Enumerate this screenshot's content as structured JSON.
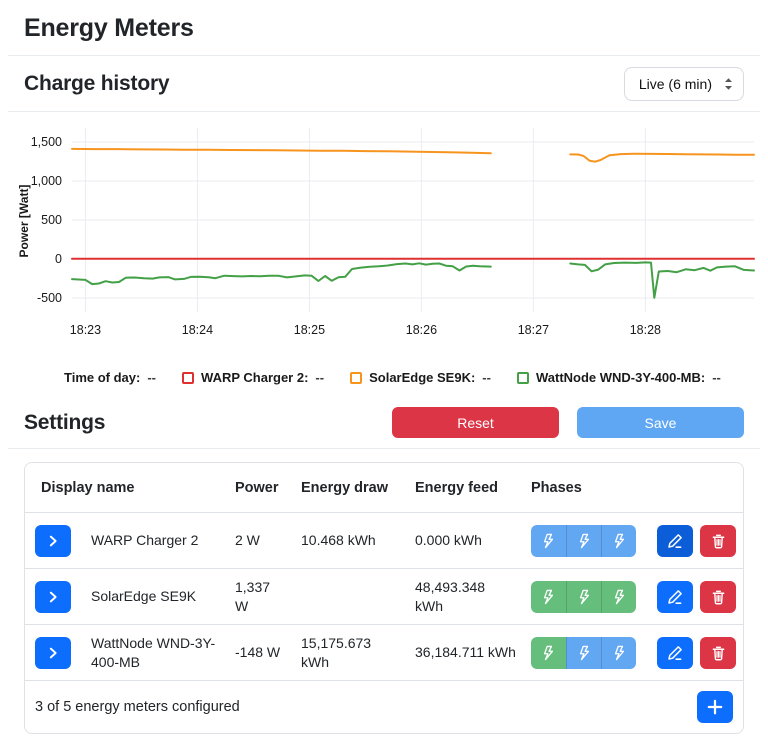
{
  "header": {
    "title": "Energy Meters"
  },
  "chart_section": {
    "title": "Charge history",
    "range_value": "Live (6 min)"
  },
  "chart_data": {
    "type": "line",
    "title": "Charge history",
    "ylabel": "Power [Watt]",
    "xlabel": "Time of day",
    "grid": true,
    "legend_position": "bottom",
    "x_domain": [
      -0.12,
      5.97
    ],
    "y_domain": [
      -680,
      1680
    ],
    "x_ticks": [
      {
        "t": 0,
        "label": "18:23"
      },
      {
        "t": 1,
        "label": "18:24"
      },
      {
        "t": 2,
        "label": "18:25"
      },
      {
        "t": 3,
        "label": "18:26"
      },
      {
        "t": 4,
        "label": "18:27"
      },
      {
        "t": 5,
        "label": "18:28"
      }
    ],
    "y_ticks": [
      {
        "v": 1500,
        "label": "1,500"
      },
      {
        "v": 1000,
        "label": "1,000"
      },
      {
        "v": 500,
        "label": "500"
      },
      {
        "v": 0,
        "label": "0"
      },
      {
        "v": -500,
        "label": "-500"
      }
    ],
    "series": [
      {
        "name": "WARP Charger 2",
        "color": "#e03131",
        "unit": "Watt",
        "segments": [
          [
            [
              -0.12,
              2
            ],
            [
              5.97,
              2
            ]
          ]
        ]
      },
      {
        "name": "SolarEdge SE9K",
        "color": "#f7941e",
        "unit": "Watt",
        "segments": [
          [
            [
              -0.12,
              1412
            ],
            [
              0.1,
              1409
            ],
            [
              0.3,
              1410
            ],
            [
              0.5,
              1406
            ],
            [
              0.7,
              1404
            ],
            [
              0.9,
              1402
            ],
            [
              1.1,
              1400
            ],
            [
              1.3,
              1398
            ],
            [
              1.5,
              1396
            ],
            [
              1.7,
              1394
            ],
            [
              1.9,
              1392
            ],
            [
              2.1,
              1389
            ],
            [
              2.3,
              1387
            ],
            [
              2.5,
              1384
            ],
            [
              2.7,
              1381
            ],
            [
              2.9,
              1377
            ],
            [
              3.1,
              1372
            ],
            [
              3.3,
              1367
            ],
            [
              3.45,
              1362
            ],
            [
              3.62,
              1357
            ]
          ],
          [
            [
              4.33,
              1342
            ],
            [
              4.4,
              1340
            ],
            [
              4.45,
              1320
            ],
            [
              4.5,
              1262
            ],
            [
              4.55,
              1248
            ],
            [
              4.6,
              1270
            ],
            [
              4.68,
              1330
            ],
            [
              4.78,
              1345
            ],
            [
              4.9,
              1349
            ],
            [
              5.05,
              1348
            ],
            [
              5.2,
              1346
            ],
            [
              5.35,
              1344
            ],
            [
              5.5,
              1342
            ],
            [
              5.65,
              1340
            ],
            [
              5.8,
              1338
            ],
            [
              5.97,
              1337
            ]
          ]
        ]
      },
      {
        "name": "WattNode WND-3Y-400-MB",
        "color": "#43a047",
        "unit": "Watt",
        "segments": [
          [
            [
              -0.12,
              -258
            ],
            [
              0,
              -268
            ],
            [
              0.06,
              -322
            ],
            [
              0.12,
              -315
            ],
            [
              0.18,
              -285
            ],
            [
              0.24,
              -302
            ],
            [
              0.3,
              -295
            ],
            [
              0.36,
              -240
            ],
            [
              0.44,
              -238
            ],
            [
              0.52,
              -248
            ],
            [
              0.6,
              -252
            ],
            [
              0.66,
              -236
            ],
            [
              0.74,
              -232
            ],
            [
              0.8,
              -262
            ],
            [
              0.88,
              -256
            ],
            [
              0.94,
              -230
            ],
            [
              1.02,
              -228
            ],
            [
              1.1,
              -234
            ],
            [
              1.16,
              -246
            ],
            [
              1.24,
              -214
            ],
            [
              1.32,
              -220
            ],
            [
              1.4,
              -224
            ],
            [
              1.48,
              -218
            ],
            [
              1.56,
              -222
            ],
            [
              1.64,
              -216
            ],
            [
              1.72,
              -214
            ],
            [
              1.8,
              -236
            ],
            [
              1.88,
              -224
            ],
            [
              1.96,
              -210
            ],
            [
              2.02,
              -216
            ],
            [
              2.08,
              -282
            ],
            [
              2.14,
              -218
            ],
            [
              2.2,
              -280
            ],
            [
              2.26,
              -234
            ],
            [
              2.32,
              -228
            ],
            [
              2.38,
              -128
            ],
            [
              2.46,
              -110
            ],
            [
              2.54,
              -100
            ],
            [
              2.62,
              -94
            ],
            [
              2.7,
              -84
            ],
            [
              2.78,
              -66
            ],
            [
              2.86,
              -58
            ],
            [
              2.92,
              -70
            ],
            [
              2.98,
              -56
            ],
            [
              3.04,
              -72
            ],
            [
              3.1,
              -62
            ],
            [
              3.16,
              -58
            ],
            [
              3.22,
              -86
            ],
            [
              3.28,
              -94
            ],
            [
              3.34,
              -148
            ],
            [
              3.4,
              -96
            ],
            [
              3.46,
              -86
            ],
            [
              3.52,
              -92
            ],
            [
              3.62,
              -98
            ]
          ],
          [
            [
              4.33,
              -58
            ],
            [
              4.4,
              -70
            ],
            [
              4.46,
              -76
            ],
            [
              4.52,
              -158
            ],
            [
              4.58,
              -136
            ],
            [
              4.64,
              -70
            ],
            [
              4.72,
              -52
            ],
            [
              4.82,
              -46
            ],
            [
              4.92,
              -50
            ],
            [
              5,
              -44
            ],
            [
              5.05,
              -46
            ],
            [
              5.08,
              -498
            ],
            [
              5.12,
              -160
            ],
            [
              5.2,
              -154
            ],
            [
              5.28,
              -170
            ],
            [
              5.36,
              -132
            ],
            [
              5.44,
              -144
            ],
            [
              5.52,
              -114
            ],
            [
              5.58,
              -150
            ],
            [
              5.64,
              -108
            ],
            [
              5.72,
              -98
            ],
            [
              5.8,
              -94
            ],
            [
              5.88,
              -140
            ],
            [
              5.97,
              -148
            ]
          ]
        ]
      }
    ],
    "legend": [
      {
        "label": "Time of day:",
        "value": "--",
        "color": null
      },
      {
        "label": "WARP Charger 2:",
        "value": "--",
        "color": "#e03131"
      },
      {
        "label": "SolarEdge SE9K:",
        "value": "--",
        "color": "#f7941e"
      },
      {
        "label": "WattNode WND-3Y-400-MB:",
        "value": "--",
        "color": "#43a047"
      }
    ]
  },
  "settings": {
    "title": "Settings",
    "reset_label": "Reset",
    "save_label": "Save",
    "table": {
      "headers": [
        "Display name",
        "Power",
        "Energy draw",
        "Energy feed",
        "Phases"
      ],
      "rows": [
        {
          "name": "WARP Charger 2",
          "power": "2 W",
          "draw": "10.468 kWh",
          "feed": "0.000 kWh",
          "phases": [
            "blue",
            "blue",
            "blue"
          ],
          "edit_variant": "dark"
        },
        {
          "name": "SolarEdge SE9K",
          "power": "1,337\nW",
          "draw": "",
          "feed": "48,493.348\nkWh",
          "phases": [
            "green",
            "green",
            "green"
          ],
          "edit_variant": "normal"
        },
        {
          "name": "WattNode WND-3Y-400-MB",
          "power": "-148 W",
          "draw": "15,175.673\nkWh",
          "feed": "36,184.711 kWh",
          "phases": [
            "green",
            "blue",
            "blue"
          ],
          "edit_variant": "normal"
        }
      ],
      "footer": "3 of 5 energy meters configured"
    },
    "colors": {
      "accent": "#0d6efd",
      "danger": "#dc3545",
      "phase_blue": "#61a7f2",
      "phase_green": "#66be7c",
      "save_blue": "#5fa7f3",
      "edit_dark": "#0b5ed7"
    }
  }
}
